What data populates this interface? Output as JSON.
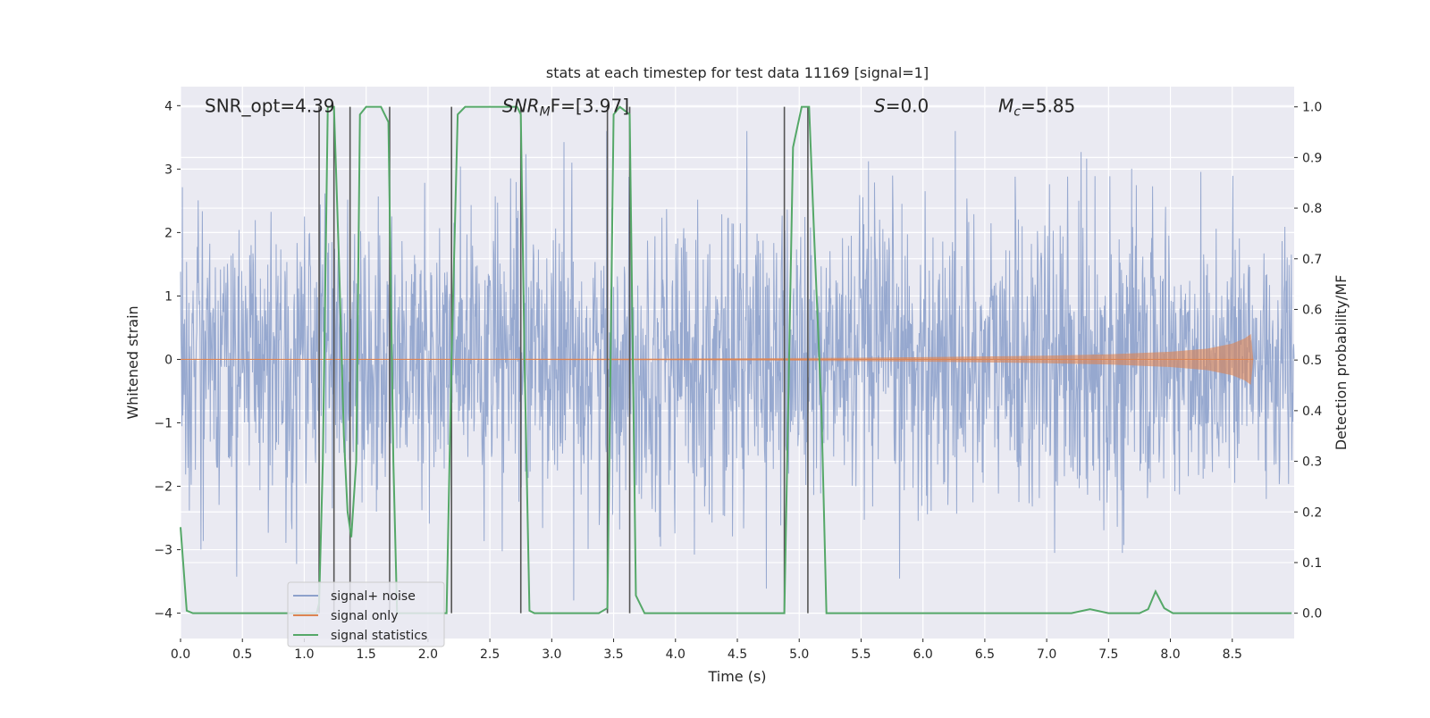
{
  "chart_data": {
    "type": "line",
    "title": "stats at each timestep for test data 11169 [signal=1]",
    "xlabel": "Time (s)",
    "ylabel_left": "Whitened strain",
    "ylabel_right": "Detection probability/MF",
    "xlim": [
      0.0,
      9.0
    ],
    "ylim_left": [
      -4.4,
      4.3
    ],
    "ylim_right": [
      -0.05,
      1.04
    ],
    "x_ticks": [
      "0.0",
      "0.5",
      "1.0",
      "1.5",
      "2.0",
      "2.5",
      "3.0",
      "3.5",
      "4.0",
      "4.5",
      "5.0",
      "5.5",
      "6.0",
      "6.5",
      "7.0",
      "7.5",
      "8.0",
      "8.5"
    ],
    "y_left_ticks": [
      "4",
      "3",
      "2",
      "1",
      "0",
      "−1",
      "−2",
      "−3",
      "−4"
    ],
    "y_right_ticks": [
      "1.0",
      "0.9",
      "0.8",
      "0.7",
      "0.6",
      "0.5",
      "0.4",
      "0.3",
      "0.2",
      "0.1",
      "0.0"
    ],
    "grid": true,
    "annotations": {
      "snr_opt": "SNR_opt=4.39",
      "snr_mf_prefix": "SNR",
      "snr_mf_sub": "M",
      "snr_mf_suffix": "F=[3.97]",
      "s_prefix": "S",
      "s_suffix": "=0.0",
      "mc_prefix": "M",
      "mc_sub": "c",
      "mc_suffix": "=5.85"
    },
    "legend": {
      "placement": "lower-left",
      "entries": [
        "signal+ noise",
        "signal only",
        "signal statistics"
      ]
    },
    "colors": {
      "noise": "#8da1cb",
      "signal": "#dd8452",
      "stats": "#55a868",
      "vlines": "#555555",
      "background": "#eaeaf2",
      "grid": "#ffffff"
    },
    "series": [
      {
        "name": "signal statistics",
        "axis": "right",
        "x": [
          0.0,
          0.05,
          0.1,
          1.1,
          1.12,
          1.15,
          1.19,
          1.24,
          1.28,
          1.32,
          1.35,
          1.38,
          1.42,
          1.45,
          1.5,
          1.62,
          1.68,
          1.72,
          1.75,
          2.15,
          2.19,
          2.24,
          2.3,
          2.72,
          2.75,
          2.78,
          2.82,
          2.86,
          3.38,
          3.45,
          3.5,
          3.55,
          3.63,
          3.68,
          3.75,
          4.88,
          4.95,
          5.02,
          5.08,
          5.12,
          5.18,
          5.22,
          5.35,
          7.2,
          7.35,
          7.5,
          7.75,
          7.82,
          7.88,
          7.95,
          8.02,
          8.98
        ],
        "y": [
          0.17,
          0.005,
          0.0,
          0.0,
          0.02,
          0.3,
          1.0,
          1.0,
          0.7,
          0.35,
          0.2,
          0.15,
          0.3,
          0.985,
          1.0,
          1.0,
          0.97,
          0.3,
          0.0,
          0.0,
          0.5,
          0.985,
          1.0,
          1.0,
          0.985,
          0.5,
          0.005,
          0.0,
          0.0,
          0.01,
          0.985,
          1.0,
          0.985,
          0.035,
          0.0,
          0.0,
          0.92,
          1.0,
          1.0,
          0.75,
          0.4,
          0.0,
          0.0,
          0.0,
          0.008,
          0.0,
          0.0,
          0.008,
          0.043,
          0.01,
          0.0,
          0.0
        ]
      },
      {
        "name": "signal only",
        "axis": "left",
        "envelope_x": [
          0.0,
          2.0,
          3.0,
          4.0,
          5.0,
          5.5,
          6.0,
          6.5,
          7.0,
          7.5,
          8.0,
          8.3,
          8.5,
          8.6,
          8.65,
          8.67
        ],
        "envelope_y": [
          0.005,
          0.008,
          0.01,
          0.014,
          0.022,
          0.028,
          0.036,
          0.046,
          0.06,
          0.08,
          0.12,
          0.17,
          0.25,
          0.33,
          0.4,
          0.0
        ]
      },
      {
        "name": "signal+ noise",
        "axis": "left",
        "amplitude_range": [
          -3.8,
          3.6
        ]
      }
    ],
    "vertical_lines_x": [
      1.12,
      1.24,
      1.37,
      1.69,
      2.19,
      2.75,
      3.45,
      3.63,
      4.88,
      5.07
    ]
  }
}
